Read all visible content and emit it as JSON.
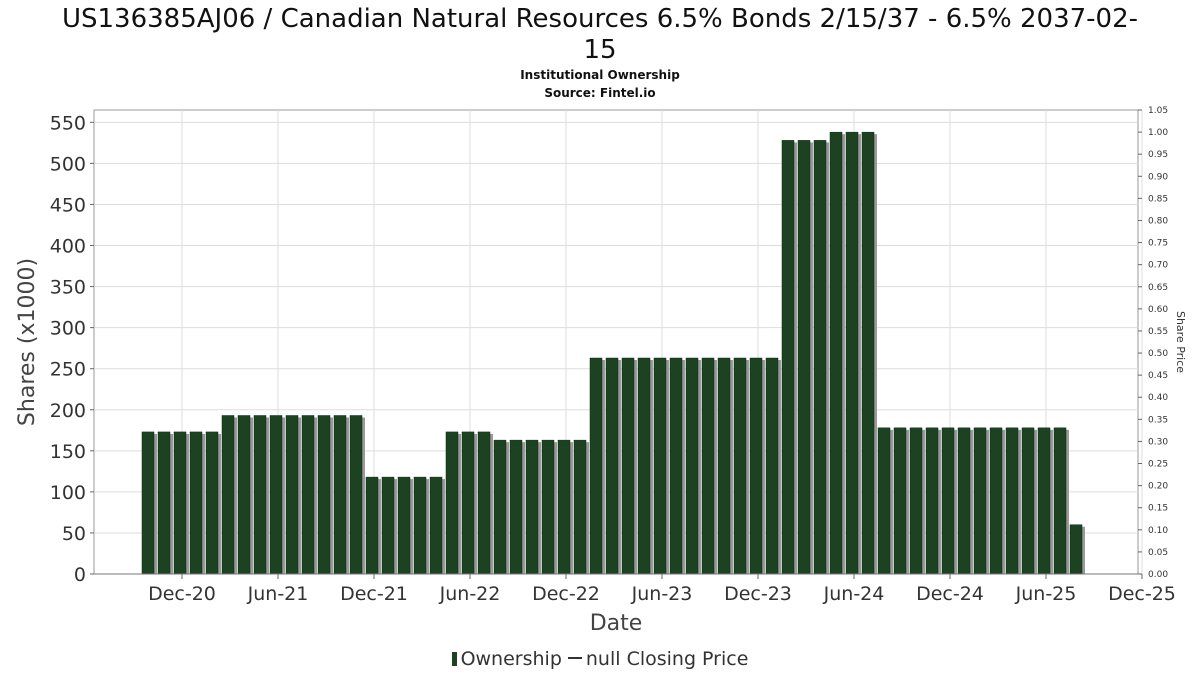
{
  "chart_data": {
    "type": "bar",
    "title": "US136385AJ06 / Canadian Natural Resources 6.5% Bonds 2/15/37 - 6.5% 2037-02-15",
    "title_lines": [
      "US136385AJ06 / Canadian Natural Resources 6.5% Bonds 2/15/37 - 6.5% 2037-02-",
      "15"
    ],
    "subtitle": "Institutional Ownership",
    "source": "Source: Fintel.io",
    "xlabel": "Date",
    "ylabel": "Shares (x1000)",
    "y2label": "Share Price",
    "ylim": [
      0,
      565
    ],
    "y2lim": [
      0,
      1.05
    ],
    "yticks": [
      "0",
      "50",
      "100",
      "150",
      "200",
      "250",
      "300",
      "350",
      "400",
      "450",
      "500",
      "550"
    ],
    "y2ticks": [
      "0.00",
      "0.05",
      "0.10",
      "0.15",
      "0.20",
      "0.25",
      "0.30",
      "0.35",
      "0.40",
      "0.45",
      "0.50",
      "0.55",
      "0.60",
      "0.65",
      "0.70",
      "0.75",
      "0.80",
      "0.85",
      "0.90",
      "0.95",
      "1.00",
      "1.05"
    ],
    "xticks": [
      "Dec-20",
      "Jun-21",
      "Dec-21",
      "Jun-22",
      "Dec-22",
      "Jun-23",
      "Dec-23",
      "Jun-24",
      "Dec-24",
      "Jun-25",
      "Dec-25"
    ],
    "grid": true,
    "legend": {
      "position": "bottom",
      "entries": [
        "Ownership",
        "null Closing Price"
      ]
    },
    "colors": {
      "bar": "#1c4222",
      "bar_shadow": "#9a9a9a",
      "grid": "#dddddd"
    },
    "series": [
      {
        "name": "Ownership",
        "values": [
          173,
          173,
          173,
          173,
          173,
          193,
          193,
          193,
          193,
          193,
          193,
          193,
          193,
          193,
          118,
          118,
          118,
          118,
          118,
          173,
          173,
          173,
          163,
          163,
          163,
          163,
          163,
          163,
          263,
          263,
          263,
          263,
          263,
          263,
          263,
          263,
          263,
          263,
          263,
          263,
          528,
          528,
          528,
          538,
          538,
          538,
          178,
          178,
          178,
          178,
          178,
          178,
          178,
          178,
          178,
          178,
          178,
          178,
          60
        ]
      }
    ]
  }
}
